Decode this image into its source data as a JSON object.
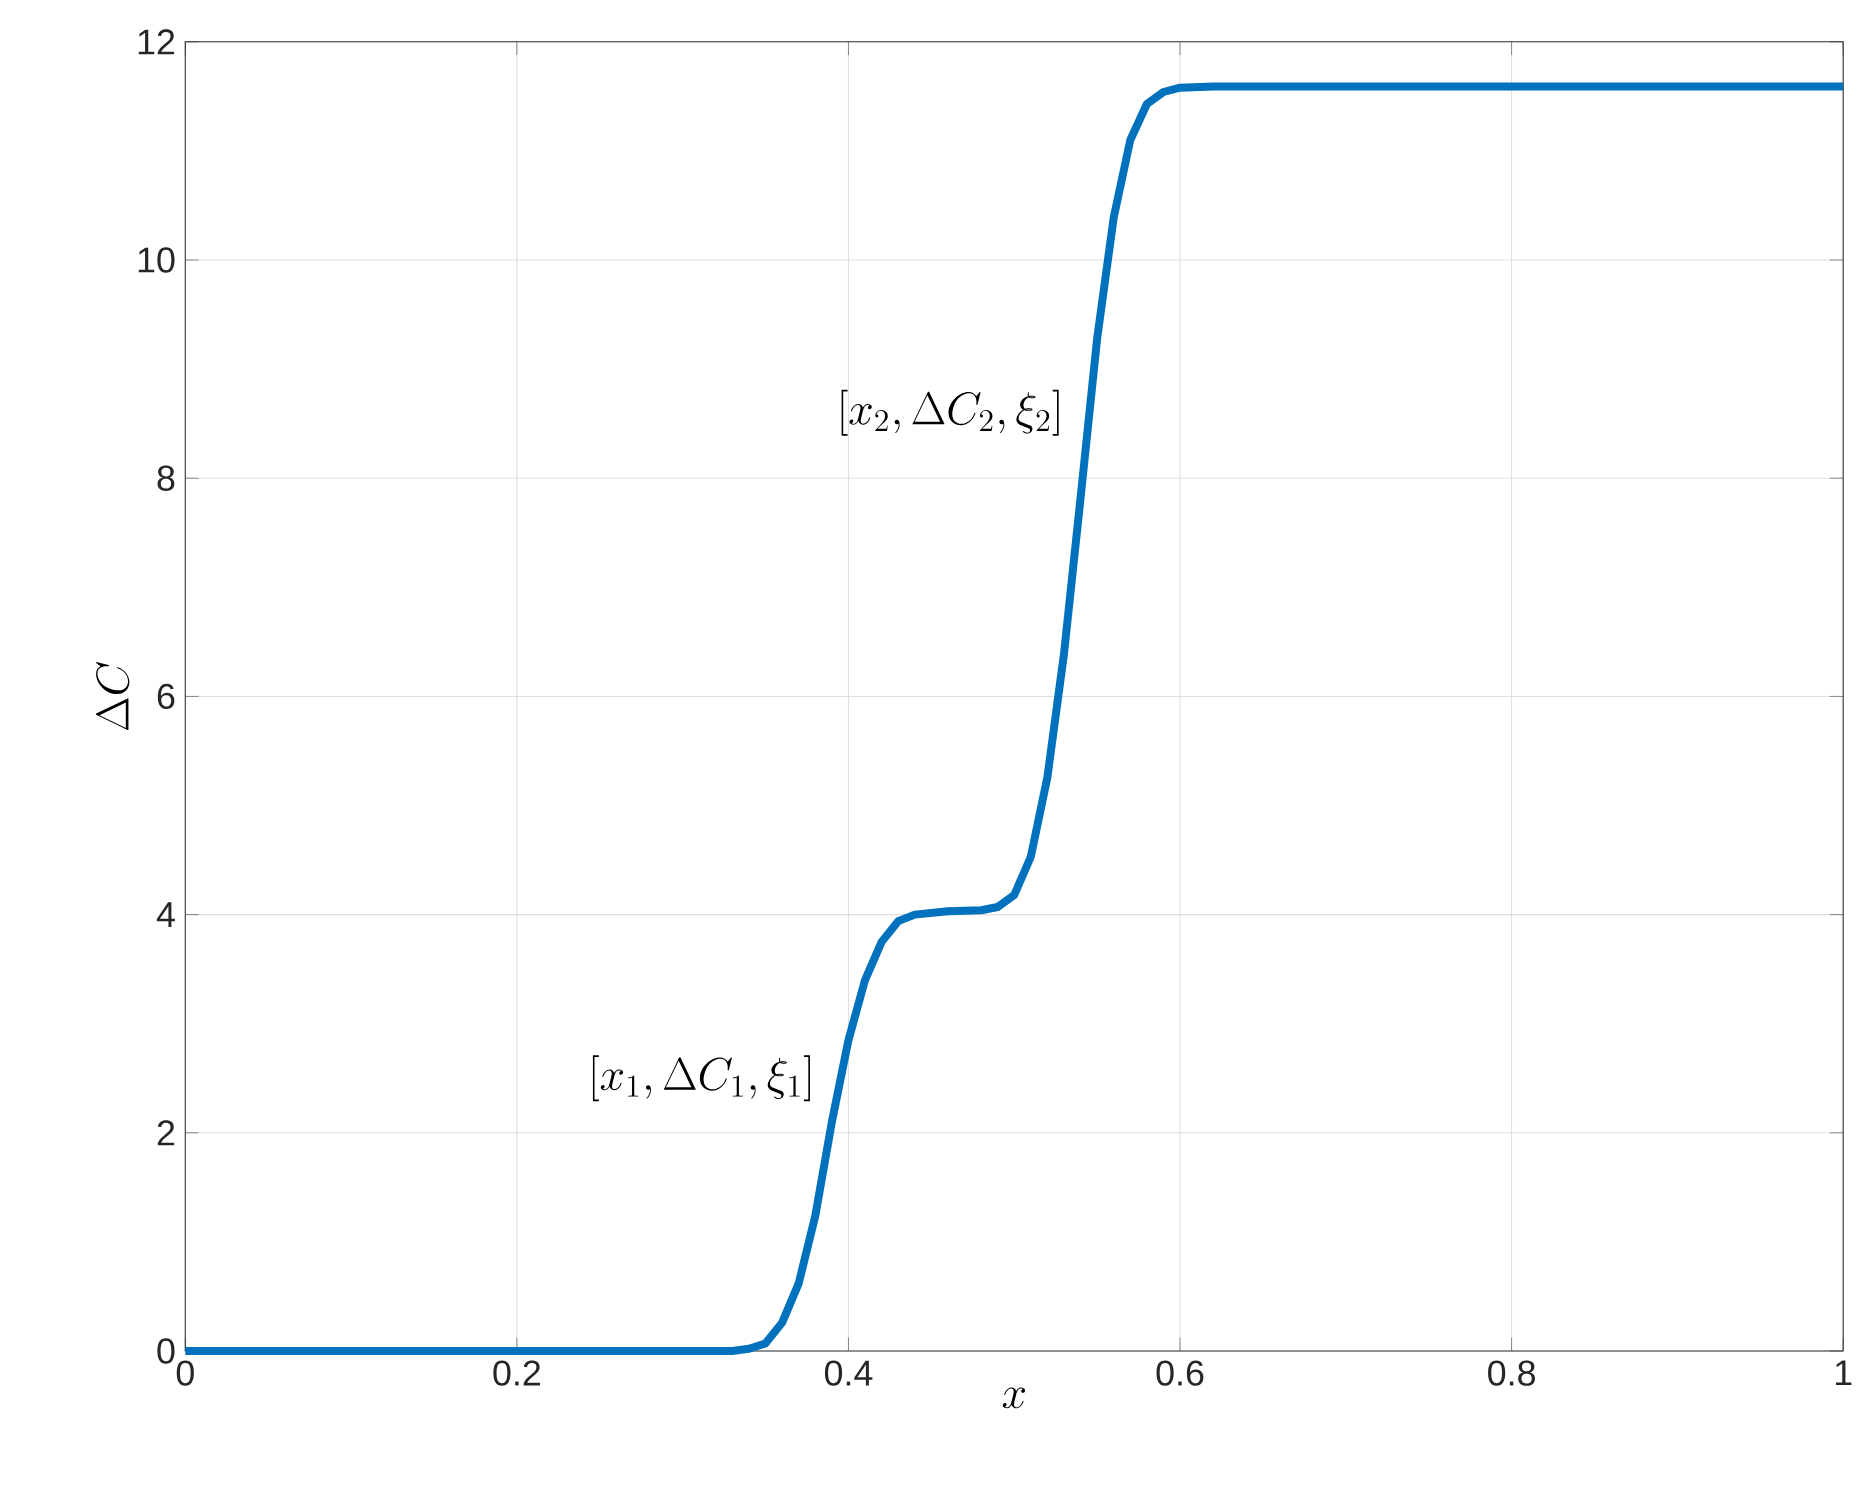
{
  "chart_data": {
    "type": "line",
    "xlabel": "x",
    "ylabel": "\\Delta C",
    "x": [
      0,
      0.1,
      0.2,
      0.3,
      0.33,
      0.34,
      0.35,
      0.36,
      0.37,
      0.38,
      0.39,
      0.4,
      0.41,
      0.42,
      0.43,
      0.44,
      0.46,
      0.48,
      0.49,
      0.5,
      0.51,
      0.52,
      0.53,
      0.54,
      0.55,
      0.56,
      0.57,
      0.58,
      0.59,
      0.6,
      0.62,
      0.7,
      0.8,
      0.9,
      1
    ],
    "series": [
      {
        "color": "#0072bd",
        "values": [
          0,
          0,
          0,
          0,
          0,
          0.02,
          0.07,
          0.26,
          0.62,
          1.24,
          2.1,
          2.85,
          3.4,
          3.75,
          3.94,
          4.0,
          4.03,
          4.04,
          4.07,
          4.18,
          4.53,
          5.26,
          6.39,
          7.82,
          9.28,
          10.39,
          11.1,
          11.43,
          11.54,
          11.58,
          11.59,
          11.59,
          11.59,
          11.59,
          11.59
        ]
      }
    ],
    "annotations": [
      {
        "text": "[x_1,\\Delta C_1,\\xi_1]",
        "x": 0.395,
        "y": 2.5
      },
      {
        "text": "[x_2,\\Delta C_2,\\xi_2]",
        "x": 0.545,
        "y": 8.6
      }
    ],
    "xlim": [
      0,
      1
    ],
    "ylim": [
      0,
      12
    ],
    "xticks": [
      0,
      0.2,
      0.4,
      0.6,
      0.8,
      1
    ],
    "yticks": [
      0,
      2,
      4,
      6,
      8,
      10,
      12
    ],
    "grid": true,
    "marker": "none",
    "line_style": "solid"
  }
}
